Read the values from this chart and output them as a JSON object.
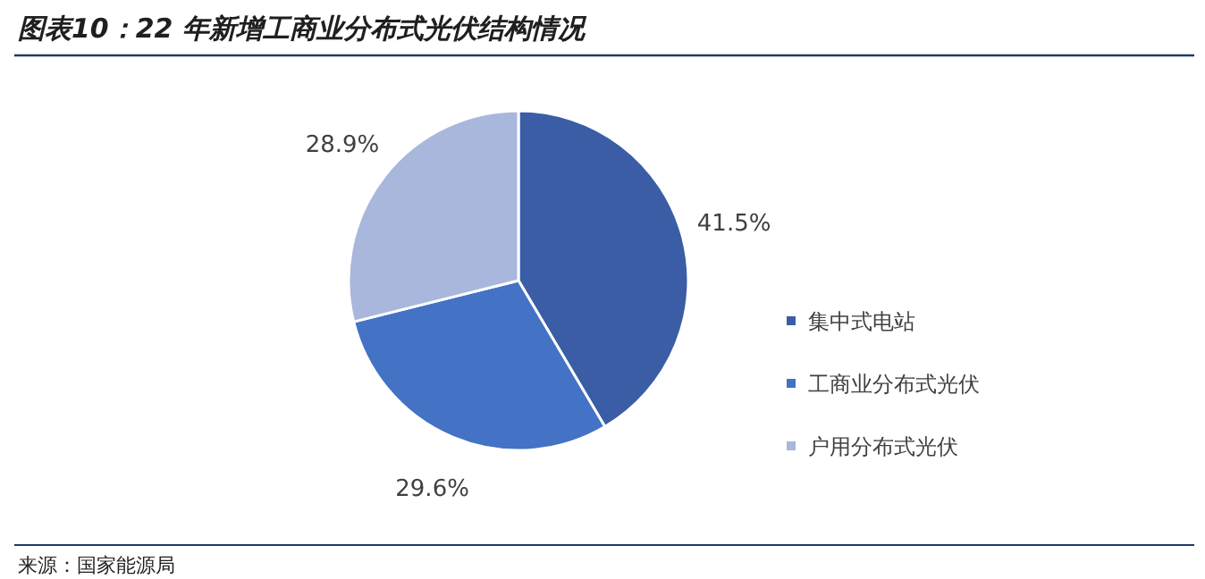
{
  "chart_data": {
    "type": "pie",
    "title": "图表10：22 年新增工商业分布式光伏结构情况",
    "categories": [
      "集中式电站",
      "工商业分布式光伏",
      "户用分布式光伏"
    ],
    "values": [
      41.5,
      29.6,
      28.9
    ],
    "colors": [
      "#3a5da6",
      "#4472c4",
      "#a9b7dc"
    ],
    "value_labels": [
      "41.5%",
      "29.6%",
      "28.9%"
    ],
    "legend": "right",
    "annotations": [
      "来源：国家能源局"
    ]
  }
}
